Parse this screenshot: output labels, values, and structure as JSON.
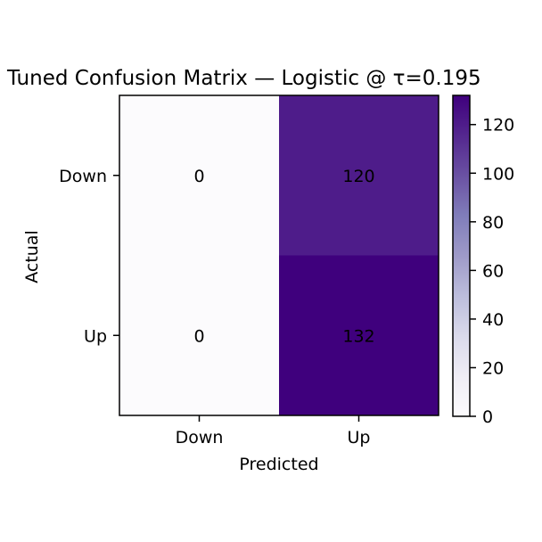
{
  "chart_data": {
    "type": "heatmap",
    "title": "Tuned Confusion Matrix — Logistic @ τ=0.195",
    "xlabel": "Predicted",
    "ylabel": "Actual",
    "x_categories": [
      "Down",
      "Up"
    ],
    "y_categories": [
      "Down",
      "Up"
    ],
    "values": [
      [
        0,
        120
      ],
      [
        0,
        132
      ]
    ],
    "cell_labels": [
      [
        "0",
        "120"
      ],
      [
        "0",
        "132"
      ]
    ],
    "colormap": "Purples",
    "colorbar": {
      "range": [
        0,
        132
      ],
      "ticks": [
        0,
        20,
        40,
        60,
        80,
        100,
        120
      ],
      "tick_labels": [
        "0",
        "20",
        "40",
        "60",
        "80",
        "100",
        "120"
      ]
    },
    "colors": {
      "low": "#fcfbfd",
      "high": "#3f007d",
      "mid_120": "#4a1a88"
    },
    "grid": false
  }
}
